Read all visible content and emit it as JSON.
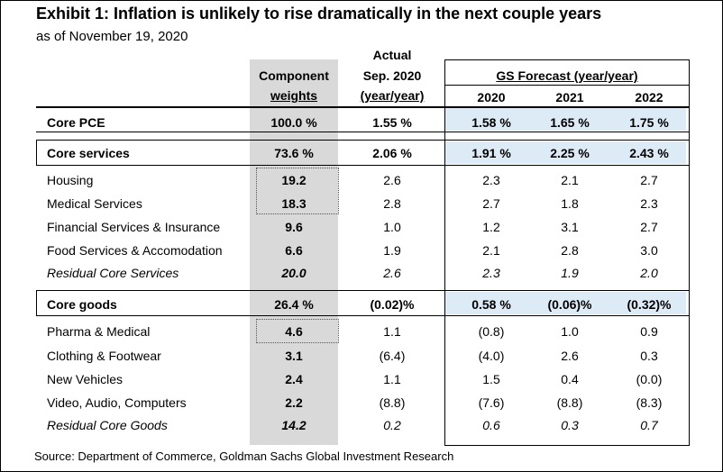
{
  "title": "Exhibit 1: Inflation is unlikely to rise dramatically in the next couple years",
  "subtitle": "as of November 19, 2020",
  "headers": {
    "component_line1": "Component",
    "component_line2": "weights",
    "actual_line1": "Actual",
    "actual_line2": "Sep. 2020",
    "actual_line3": "(year/year)",
    "forecast_group": "GS Forecast (year/year)",
    "y2020": "2020",
    "y2021": "2021",
    "y2022": "2022"
  },
  "rows": [
    {
      "label": "Core PCE",
      "weight": "100.0 %",
      "actual": "1.55 %",
      "f2020": "1.58 %",
      "f2021": "1.65 %",
      "f2022": "1.75 %"
    },
    {
      "label": "Core services",
      "weight": "73.6 %",
      "actual": "2.06 %",
      "f2020": "1.91 %",
      "f2021": "2.25 %",
      "f2022": "2.43 %"
    },
    {
      "label": "Housing",
      "weight": "19.2",
      "actual": "2.6",
      "f2020": "2.3",
      "f2021": "2.1",
      "f2022": "2.7"
    },
    {
      "label": "Medical Services",
      "weight": "18.3",
      "actual": "2.8",
      "f2020": "2.7",
      "f2021": "1.8",
      "f2022": "2.3"
    },
    {
      "label": "Financial Services & Insurance",
      "weight": "9.6",
      "actual": "1.0",
      "f2020": "1.2",
      "f2021": "3.1",
      "f2022": "2.7"
    },
    {
      "label": "Food Services & Accomodation",
      "weight": "6.6",
      "actual": "1.9",
      "f2020": "2.1",
      "f2021": "2.8",
      "f2022": "3.0"
    },
    {
      "label": "Residual Core Services",
      "weight": "20.0",
      "actual": "2.6",
      "f2020": "2.3",
      "f2021": "1.9",
      "f2022": "2.0"
    },
    {
      "label": "Core goods",
      "weight": "26.4 %",
      "actual": "(0.02)%",
      "f2020": "0.58 %",
      "f2021": "(0.06)%",
      "f2022": "(0.32)%"
    },
    {
      "label": "Pharma & Medical",
      "weight": "4.6",
      "actual": "1.1",
      "f2020": "(0.8)",
      "f2021": "1.0",
      "f2022": "0.9"
    },
    {
      "label": "Clothing & Footwear",
      "weight": "3.1",
      "actual": "(6.4)",
      "f2020": "(4.0)",
      "f2021": "2.6",
      "f2022": "0.3"
    },
    {
      "label": "New Vehicles",
      "weight": "2.4",
      "actual": "1.1",
      "f2020": "1.5",
      "f2021": "0.4",
      "f2022": "(0.0)"
    },
    {
      "label": "Video, Audio, Computers",
      "weight": "2.2",
      "actual": "(8.8)",
      "f2020": "(7.6)",
      "f2021": "(8.8)",
      "f2022": "(8.3)"
    },
    {
      "label": "Residual Core Goods",
      "weight": "14.2",
      "actual": "0.2",
      "f2020": "0.6",
      "f2021": "0.3",
      "f2022": "0.7"
    }
  ],
  "source": "Source: Department of Commerce, Goldman Sachs Global Investment Research"
}
